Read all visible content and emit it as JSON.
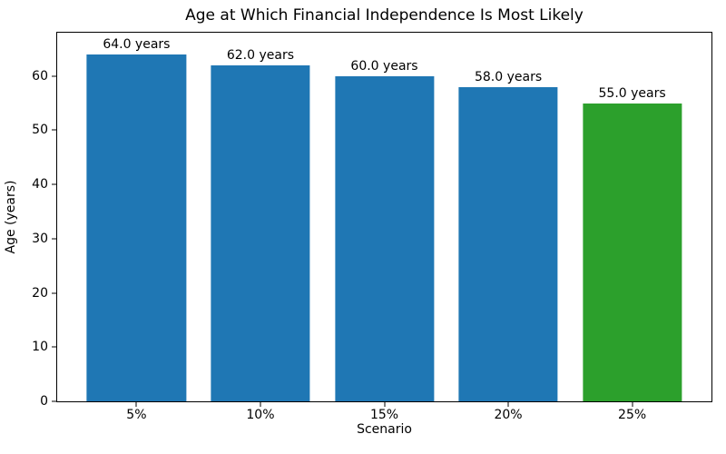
{
  "chart_data": {
    "type": "bar",
    "title": "Age at Which Financial Independence Is Most Likely",
    "xlabel": "Scenario",
    "ylabel": "Age (years)",
    "categories": [
      "5%",
      "10%",
      "15%",
      "20%",
      "25%"
    ],
    "values": [
      64.0,
      62.0,
      60.0,
      58.0,
      55.0
    ],
    "bar_labels": [
      "64.0 years",
      "62.0 years",
      "60.0 years",
      "58.0 years",
      "55.0 years"
    ],
    "bar_colors": [
      "#1f77b4",
      "#1f77b4",
      "#1f77b4",
      "#1f77b4",
      "#2ca02c"
    ],
    "default_color": "#1f77b4",
    "highlight_color": "#2ca02c",
    "ylim": [
      0,
      68
    ],
    "yticks": [
      0,
      10,
      20,
      30,
      40,
      50,
      60
    ],
    "xlim_units": [
      -0.64,
      4.64
    ],
    "bar_width_units": 0.8,
    "grid": false,
    "legend_position": "none"
  }
}
